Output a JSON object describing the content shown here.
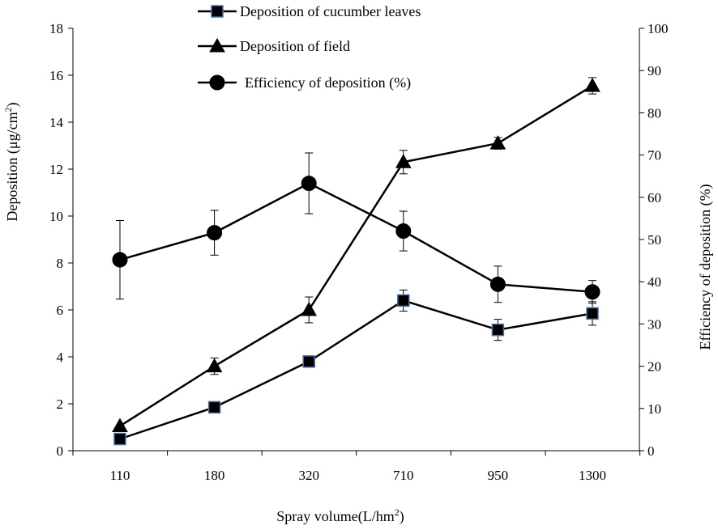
{
  "chart_data": {
    "type": "line",
    "categories": [
      "110",
      "180",
      "320",
      "710",
      "950",
      "1300"
    ],
    "xlabel": "Spray volume(L/hm",
    "xlabel_sup": "2",
    "xlabel_end": ")",
    "ylabel": "Deposition  (μg/cm",
    "ylabel_sup": "2",
    "ylabel_end": ")",
    "y2label": "Efficiency of deposition (%)",
    "ylim": [
      0,
      18
    ],
    "y_ticks": [
      0,
      2,
      4,
      6,
      8,
      10,
      12,
      14,
      16,
      18
    ],
    "y2lim": [
      0,
      100
    ],
    "y2_ticks": [
      0,
      10,
      20,
      30,
      40,
      50,
      60,
      70,
      80,
      90,
      100
    ],
    "series": [
      {
        "name": "Deposition of cucumber leaves",
        "axis": "left",
        "marker": "square",
        "marker_fill": "#000000",
        "marker_stroke": "#4a6fa5",
        "values": [
          0.5,
          1.85,
          3.8,
          6.4,
          5.15,
          5.85
        ],
        "errors": [
          null,
          null,
          null,
          0.45,
          0.45,
          0.5
        ]
      },
      {
        "name": "Deposition of field",
        "axis": "left",
        "marker": "triangle",
        "marker_fill": "#000000",
        "marker_stroke": "#000000",
        "values": [
          1.05,
          3.6,
          6.0,
          12.3,
          13.1,
          15.55
        ],
        "errors": [
          null,
          0.35,
          0.55,
          0.5,
          0.25,
          0.35
        ]
      },
      {
        "name": "Efficiency of deposition (%)",
        "axis": "right",
        "marker": "circle",
        "marker_fill": "#000000",
        "marker_stroke": "#000000",
        "values": [
          45.2,
          51.6,
          63.3,
          52.0,
          39.4,
          37.6
        ],
        "errors": [
          9.3,
          5.3,
          7.2,
          4.7,
          4.3,
          2.7
        ]
      }
    ]
  }
}
